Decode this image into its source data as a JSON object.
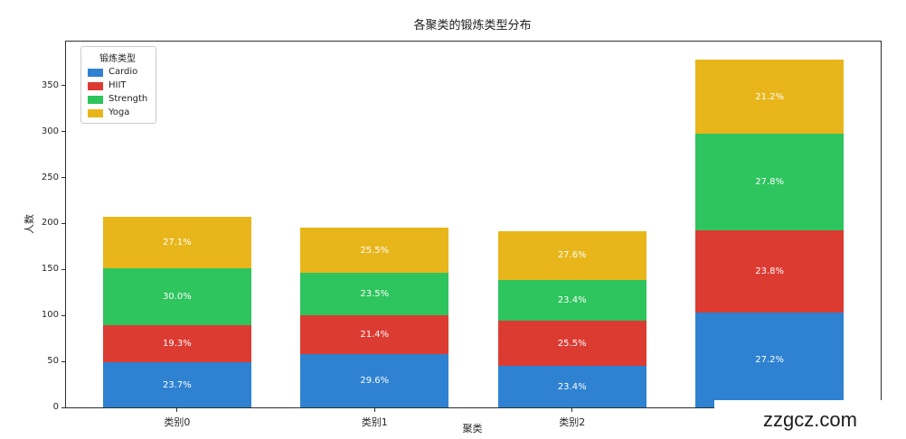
{
  "title": "各聚类的锻炼类型分布",
  "axes": {
    "xlabel": "聚类",
    "ylabel": "人数",
    "y_tick_labels": [
      "0",
      "50",
      "100",
      "150",
      "200",
      "250",
      "300",
      "350"
    ],
    "x_tick_labels": [
      "类别0",
      "类别1",
      "类别2",
      ""
    ]
  },
  "legend": {
    "title": "锻炼类型",
    "items": [
      "Cardio",
      "HIIT",
      "Strength",
      "Yoga"
    ]
  },
  "watermark": {
    "text": "zzgcz.com"
  },
  "colors": {
    "cardio": "#2E82D1",
    "hiit": "#DC3B32",
    "strength": "#2EC45E",
    "yoga": "#E8B61B"
  },
  "chart_data": {
    "type": "bar",
    "stacked": true,
    "title": "各聚类的锻炼类型分布",
    "xlabel": "聚类",
    "ylabel": "人数",
    "categories": [
      "类别0",
      "类别1",
      "类别2",
      ""
    ],
    "series": [
      {
        "name": "Cardio",
        "color": "#2E82D1",
        "values": [
          49,
          58,
          45,
          103
        ],
        "pct_labels": [
          "23.7%",
          "29.6%",
          "23.4%",
          "27.2%"
        ]
      },
      {
        "name": "HIIT",
        "color": "#DC3B32",
        "values": [
          40,
          42,
          49,
          90
        ],
        "pct_labels": [
          "19.3%",
          "21.4%",
          "25.5%",
          "23.8%"
        ]
      },
      {
        "name": "Strength",
        "color": "#2EC45E",
        "values": [
          62,
          46,
          45,
          105
        ],
        "pct_labels": [
          "30.0%",
          "23.5%",
          "23.4%",
          "27.8%"
        ]
      },
      {
        "name": "Yoga",
        "color": "#E8B61B",
        "values": [
          56,
          50,
          53,
          80
        ],
        "pct_labels": [
          "27.1%",
          "25.5%",
          "27.6%",
          "21.2%"
        ]
      }
    ],
    "bar_totals": [
      207,
      196,
      192,
      378
    ],
    "y_ticks": [
      0,
      50,
      100,
      150,
      200,
      250,
      300,
      350
    ],
    "ylim": [
      0,
      398
    ],
    "grid": false,
    "legend_position": "upper left"
  }
}
